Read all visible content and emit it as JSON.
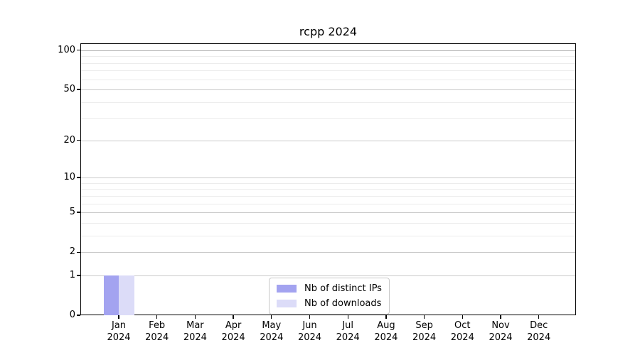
{
  "chart_data": {
    "type": "bar",
    "title": "rcpp 2024",
    "xlabel": "",
    "ylabel": "",
    "yscale": "log1p",
    "grid": "on",
    "ylim": [
      0,
      113
    ],
    "yticks": [
      0,
      1,
      2,
      5,
      10,
      20,
      50,
      100
    ],
    "minor_yticks": [
      3,
      4,
      6,
      7,
      8,
      9,
      30,
      40,
      60,
      70,
      80,
      90
    ],
    "emphasized_gridline": 100,
    "categories": [
      "Jan",
      "Feb",
      "Mar",
      "Apr",
      "May",
      "Jun",
      "Jul",
      "Aug",
      "Sep",
      "Oct",
      "Nov",
      "Dec"
    ],
    "category_sublabel": "2024",
    "series": [
      {
        "name": "Nb of distinct IPs",
        "color": "#a3a3f0",
        "values": [
          1,
          0,
          0,
          0,
          0,
          0,
          0,
          0,
          0,
          0,
          0,
          0
        ]
      },
      {
        "name": "Nb of downloads",
        "color": "#dcdcf8",
        "values": [
          1,
          0,
          0,
          0,
          0,
          0,
          0,
          0,
          0,
          0,
          0,
          0
        ]
      }
    ],
    "legend_position": "lower center"
  }
}
